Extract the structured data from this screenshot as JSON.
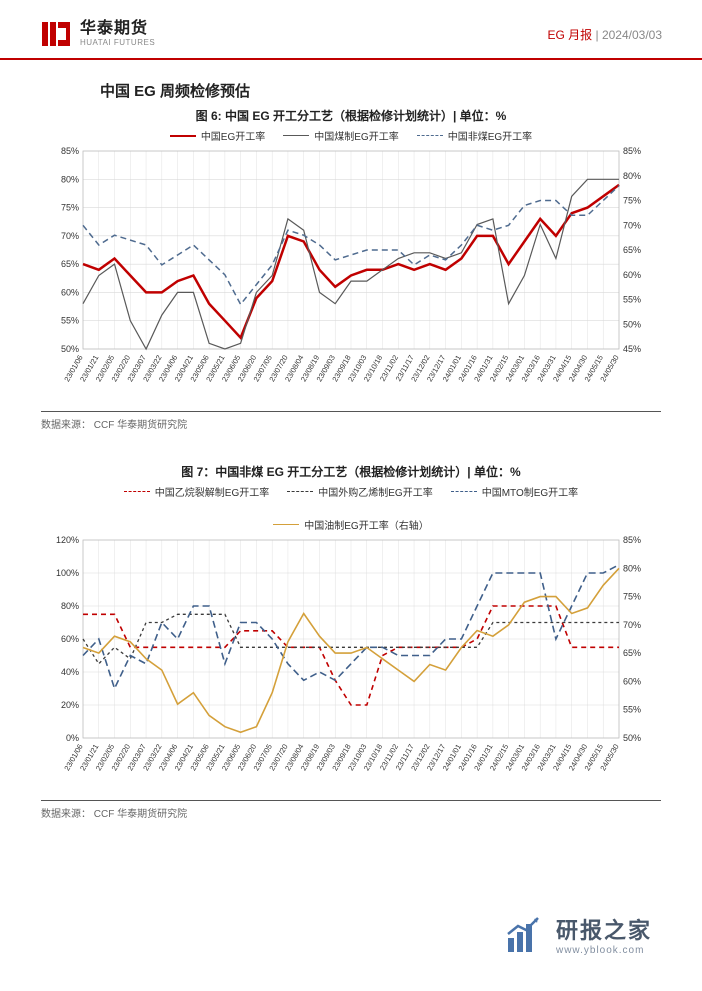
{
  "header": {
    "logo_cn": "华泰期货",
    "logo_en": "HUATAI FUTURES",
    "report_type": "EG 月报",
    "date": "2024/03/03"
  },
  "section_title": "中国 EG 周频检修预估",
  "chart6": {
    "type": "line",
    "title": "图 6: 中国 EG 开工分工艺（根据检修计划统计）| 单位：%",
    "x_labels": [
      "23/01/06",
      "23/01/21",
      "23/02/05",
      "23/02/20",
      "23/03/07",
      "23/03/22",
      "23/04/06",
      "23/04/21",
      "23/05/06",
      "23/05/21",
      "23/06/05",
      "23/06/20",
      "23/07/05",
      "23/07/20",
      "23/08/04",
      "23/08/19",
      "23/09/03",
      "23/09/18",
      "23/10/03",
      "23/10/18",
      "23/11/02",
      "23/11/17",
      "23/12/02",
      "23/12/17",
      "24/01/01",
      "24/01/16",
      "24/01/31",
      "24/02/15",
      "24/03/01",
      "24/03/16",
      "24/03/31",
      "24/04/15",
      "24/04/30",
      "24/05/15",
      "24/05/30"
    ],
    "y_left": {
      "min": 50,
      "max": 85,
      "step": 5,
      "label_suffix": "%"
    },
    "y_right": {
      "min": 45,
      "max": 85,
      "step": 5,
      "label_suffix": "%"
    },
    "grid_color": "#d9d9d9",
    "background_color": "#ffffff",
    "series": [
      {
        "name": "中国EG开工率",
        "color": "#c00000",
        "width": 2.5,
        "dash": "none",
        "axis": "left",
        "data": [
          65,
          64,
          66,
          63,
          60,
          60,
          62,
          63,
          58,
          55,
          52,
          59,
          62,
          70,
          69,
          64,
          61,
          63,
          64,
          64,
          65,
          64,
          65,
          64,
          66,
          70,
          70,
          65,
          69,
          73,
          70,
          74,
          75,
          77,
          79
        ]
      },
      {
        "name": "中国煤制EG开工率",
        "color": "#595959",
        "width": 1.2,
        "dash": "none",
        "axis": "left",
        "data": [
          58,
          63,
          65,
          55,
          50,
          56,
          60,
          60,
          51,
          50,
          51,
          60,
          63,
          73,
          71,
          60,
          58,
          62,
          62,
          64,
          66,
          67,
          67,
          66,
          67,
          72,
          73,
          58,
          63,
          72,
          66,
          77,
          80,
          80,
          80
        ]
      },
      {
        "name": "中国非煤EG开工率",
        "color": "#4f6b8f",
        "width": 1.5,
        "dash": "6,4",
        "axis": "right",
        "data": [
          70,
          66,
          68,
          67,
          66,
          62,
          64,
          66,
          63,
          60,
          54,
          58,
          62,
          69,
          68,
          66,
          63,
          64,
          65,
          65,
          65,
          62,
          64,
          63,
          66,
          70,
          69,
          70,
          74,
          75,
          75,
          72,
          72,
          75,
          78
        ]
      }
    ]
  },
  "chart7": {
    "type": "line",
    "title": "图 7：中国非煤 EG 开工分工艺（根据检修计划统计）| 单位：%",
    "x_labels": [
      "23/01/06",
      "23/01/21",
      "23/02/05",
      "23/02/20",
      "23/03/07",
      "23/03/22",
      "23/04/06",
      "23/04/21",
      "23/05/06",
      "23/05/21",
      "23/06/05",
      "23/06/20",
      "23/07/05",
      "23/07/20",
      "23/08/04",
      "23/08/19",
      "23/09/03",
      "23/09/18",
      "23/10/03",
      "23/10/18",
      "23/11/02",
      "23/11/17",
      "23/12/02",
      "23/12/17",
      "24/01/01",
      "24/01/16",
      "24/01/31",
      "24/02/15",
      "24/03/01",
      "24/03/16",
      "24/03/31",
      "24/04/15",
      "24/04/30",
      "24/05/15",
      "24/05/30"
    ],
    "y_left": {
      "min": 0,
      "max": 120,
      "step": 20,
      "label_suffix": "%"
    },
    "y_right": {
      "min": 50,
      "max": 85,
      "step": 5,
      "label_suffix": "%"
    },
    "grid_color": "#d9d9d9",
    "background_color": "#ffffff",
    "series": [
      {
        "name": "中国乙烷裂解制EG开工率",
        "color": "#c00000",
        "width": 1.6,
        "dash": "5,4",
        "axis": "left",
        "data": [
          75,
          75,
          75,
          55,
          55,
          55,
          55,
          55,
          55,
          55,
          65,
          65,
          65,
          55,
          55,
          55,
          35,
          20,
          20,
          50,
          55,
          55,
          55,
          55,
          55,
          60,
          80,
          80,
          80,
          80,
          80,
          55,
          55,
          55,
          55
        ]
      },
      {
        "name": "中国外购乙烯制EG开工率",
        "color": "#3a3a3a",
        "width": 1.3,
        "dash": "3,3",
        "axis": "left",
        "data": [
          60,
          45,
          55,
          48,
          70,
          70,
          75,
          75,
          75,
          75,
          55,
          55,
          55,
          55,
          55,
          55,
          55,
          55,
          55,
          55,
          55,
          55,
          55,
          55,
          55,
          55,
          70,
          70,
          70,
          70,
          70,
          70,
          70,
          70,
          70
        ]
      },
      {
        "name": "中国MTO制EG开工率",
        "color": "#3f5f8a",
        "width": 1.6,
        "dash": "7,4",
        "axis": "left",
        "data": [
          50,
          60,
          30,
          50,
          45,
          70,
          60,
          80,
          80,
          45,
          70,
          70,
          60,
          45,
          35,
          40,
          35,
          45,
          55,
          55,
          50,
          50,
          50,
          60,
          60,
          80,
          100,
          100,
          100,
          100,
          60,
          80,
          100,
          100,
          105
        ]
      },
      {
        "name": "中国油制EG开工率（右轴）",
        "color": "#d4a03a",
        "width": 1.6,
        "dash": "none",
        "axis": "right",
        "data": [
          66,
          65,
          68,
          67,
          64,
          62,
          56,
          58,
          54,
          52,
          51,
          52,
          58,
          67,
          72,
          68,
          65,
          65,
          66,
          64,
          62,
          60,
          63,
          62,
          66,
          69,
          68,
          70,
          74,
          75,
          75,
          72,
          73,
          77,
          80
        ]
      }
    ]
  },
  "source_label": "数据来源：",
  "source_text": "CCF 华泰期货研究院",
  "watermark": {
    "cn": "研报之家",
    "en": "www.yblook.com"
  }
}
